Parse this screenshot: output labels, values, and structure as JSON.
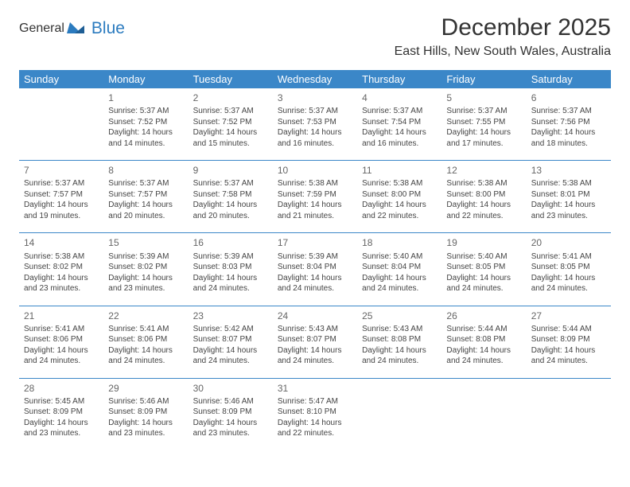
{
  "logo": {
    "general": "General",
    "blue": "Blue"
  },
  "title": "December 2025",
  "location": "East Hills, New South Wales, Australia",
  "colors": {
    "header_bg": "#3b87c8",
    "header_text": "#ffffff",
    "divider": "#3b87c8",
    "body_text": "#444444",
    "daynum": "#666666",
    "logo_general": "#6a6a6a",
    "logo_blue": "#2b7bbf"
  },
  "weekdays": [
    "Sunday",
    "Monday",
    "Tuesday",
    "Wednesday",
    "Thursday",
    "Friday",
    "Saturday"
  ],
  "weeks": [
    [
      null,
      {
        "n": "1",
        "sr": "Sunrise: 5:37 AM",
        "ss": "Sunset: 7:52 PM",
        "d1": "Daylight: 14 hours",
        "d2": "and 14 minutes."
      },
      {
        "n": "2",
        "sr": "Sunrise: 5:37 AM",
        "ss": "Sunset: 7:52 PM",
        "d1": "Daylight: 14 hours",
        "d2": "and 15 minutes."
      },
      {
        "n": "3",
        "sr": "Sunrise: 5:37 AM",
        "ss": "Sunset: 7:53 PM",
        "d1": "Daylight: 14 hours",
        "d2": "and 16 minutes."
      },
      {
        "n": "4",
        "sr": "Sunrise: 5:37 AM",
        "ss": "Sunset: 7:54 PM",
        "d1": "Daylight: 14 hours",
        "d2": "and 16 minutes."
      },
      {
        "n": "5",
        "sr": "Sunrise: 5:37 AM",
        "ss": "Sunset: 7:55 PM",
        "d1": "Daylight: 14 hours",
        "d2": "and 17 minutes."
      },
      {
        "n": "6",
        "sr": "Sunrise: 5:37 AM",
        "ss": "Sunset: 7:56 PM",
        "d1": "Daylight: 14 hours",
        "d2": "and 18 minutes."
      }
    ],
    [
      {
        "n": "7",
        "sr": "Sunrise: 5:37 AM",
        "ss": "Sunset: 7:57 PM",
        "d1": "Daylight: 14 hours",
        "d2": "and 19 minutes."
      },
      {
        "n": "8",
        "sr": "Sunrise: 5:37 AM",
        "ss": "Sunset: 7:57 PM",
        "d1": "Daylight: 14 hours",
        "d2": "and 20 minutes."
      },
      {
        "n": "9",
        "sr": "Sunrise: 5:37 AM",
        "ss": "Sunset: 7:58 PM",
        "d1": "Daylight: 14 hours",
        "d2": "and 20 minutes."
      },
      {
        "n": "10",
        "sr": "Sunrise: 5:38 AM",
        "ss": "Sunset: 7:59 PM",
        "d1": "Daylight: 14 hours",
        "d2": "and 21 minutes."
      },
      {
        "n": "11",
        "sr": "Sunrise: 5:38 AM",
        "ss": "Sunset: 8:00 PM",
        "d1": "Daylight: 14 hours",
        "d2": "and 22 minutes."
      },
      {
        "n": "12",
        "sr": "Sunrise: 5:38 AM",
        "ss": "Sunset: 8:00 PM",
        "d1": "Daylight: 14 hours",
        "d2": "and 22 minutes."
      },
      {
        "n": "13",
        "sr": "Sunrise: 5:38 AM",
        "ss": "Sunset: 8:01 PM",
        "d1": "Daylight: 14 hours",
        "d2": "and 23 minutes."
      }
    ],
    [
      {
        "n": "14",
        "sr": "Sunrise: 5:38 AM",
        "ss": "Sunset: 8:02 PM",
        "d1": "Daylight: 14 hours",
        "d2": "and 23 minutes."
      },
      {
        "n": "15",
        "sr": "Sunrise: 5:39 AM",
        "ss": "Sunset: 8:02 PM",
        "d1": "Daylight: 14 hours",
        "d2": "and 23 minutes."
      },
      {
        "n": "16",
        "sr": "Sunrise: 5:39 AM",
        "ss": "Sunset: 8:03 PM",
        "d1": "Daylight: 14 hours",
        "d2": "and 24 minutes."
      },
      {
        "n": "17",
        "sr": "Sunrise: 5:39 AM",
        "ss": "Sunset: 8:04 PM",
        "d1": "Daylight: 14 hours",
        "d2": "and 24 minutes."
      },
      {
        "n": "18",
        "sr": "Sunrise: 5:40 AM",
        "ss": "Sunset: 8:04 PM",
        "d1": "Daylight: 14 hours",
        "d2": "and 24 minutes."
      },
      {
        "n": "19",
        "sr": "Sunrise: 5:40 AM",
        "ss": "Sunset: 8:05 PM",
        "d1": "Daylight: 14 hours",
        "d2": "and 24 minutes."
      },
      {
        "n": "20",
        "sr": "Sunrise: 5:41 AM",
        "ss": "Sunset: 8:05 PM",
        "d1": "Daylight: 14 hours",
        "d2": "and 24 minutes."
      }
    ],
    [
      {
        "n": "21",
        "sr": "Sunrise: 5:41 AM",
        "ss": "Sunset: 8:06 PM",
        "d1": "Daylight: 14 hours",
        "d2": "and 24 minutes."
      },
      {
        "n": "22",
        "sr": "Sunrise: 5:41 AM",
        "ss": "Sunset: 8:06 PM",
        "d1": "Daylight: 14 hours",
        "d2": "and 24 minutes."
      },
      {
        "n": "23",
        "sr": "Sunrise: 5:42 AM",
        "ss": "Sunset: 8:07 PM",
        "d1": "Daylight: 14 hours",
        "d2": "and 24 minutes."
      },
      {
        "n": "24",
        "sr": "Sunrise: 5:43 AM",
        "ss": "Sunset: 8:07 PM",
        "d1": "Daylight: 14 hours",
        "d2": "and 24 minutes."
      },
      {
        "n": "25",
        "sr": "Sunrise: 5:43 AM",
        "ss": "Sunset: 8:08 PM",
        "d1": "Daylight: 14 hours",
        "d2": "and 24 minutes."
      },
      {
        "n": "26",
        "sr": "Sunrise: 5:44 AM",
        "ss": "Sunset: 8:08 PM",
        "d1": "Daylight: 14 hours",
        "d2": "and 24 minutes."
      },
      {
        "n": "27",
        "sr": "Sunrise: 5:44 AM",
        "ss": "Sunset: 8:09 PM",
        "d1": "Daylight: 14 hours",
        "d2": "and 24 minutes."
      }
    ],
    [
      {
        "n": "28",
        "sr": "Sunrise: 5:45 AM",
        "ss": "Sunset: 8:09 PM",
        "d1": "Daylight: 14 hours",
        "d2": "and 23 minutes."
      },
      {
        "n": "29",
        "sr": "Sunrise: 5:46 AM",
        "ss": "Sunset: 8:09 PM",
        "d1": "Daylight: 14 hours",
        "d2": "and 23 minutes."
      },
      {
        "n": "30",
        "sr": "Sunrise: 5:46 AM",
        "ss": "Sunset: 8:09 PM",
        "d1": "Daylight: 14 hours",
        "d2": "and 23 minutes."
      },
      {
        "n": "31",
        "sr": "Sunrise: 5:47 AM",
        "ss": "Sunset: 8:10 PM",
        "d1": "Daylight: 14 hours",
        "d2": "and 22 minutes."
      },
      null,
      null,
      null
    ]
  ]
}
